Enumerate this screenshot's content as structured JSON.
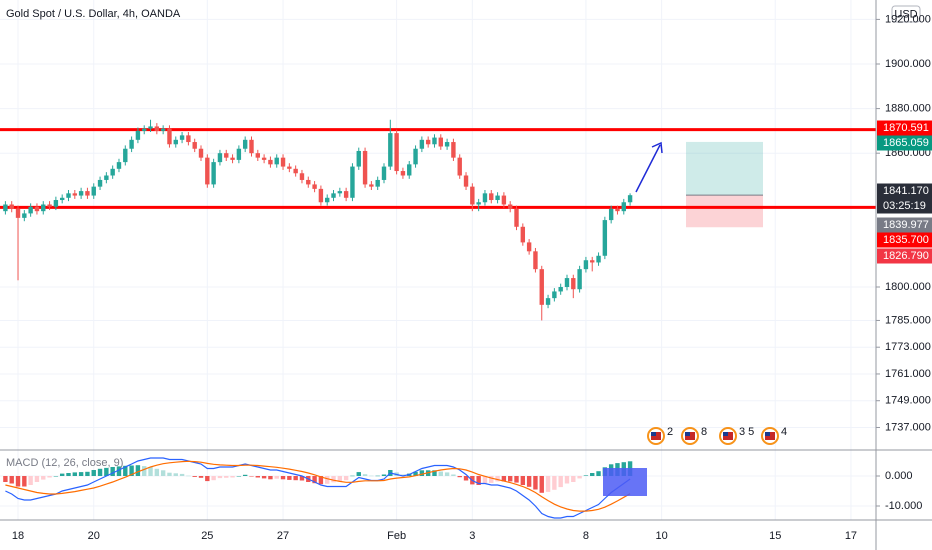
{
  "chart_data": {
    "type": "candlestick",
    "title": "Gold Spot / U.S. Dollar, 4h, OANDA",
    "currency": "USD",
    "categories": [
      null,
      null,
      "18",
      null,
      null,
      null,
      null,
      null,
      null,
      null,
      null,
      null,
      null,
      null,
      "20",
      null,
      null,
      null,
      null,
      null,
      null,
      null,
      null,
      null,
      null,
      null,
      null,
      null,
      null,
      null,
      null,
      null,
      "25",
      null,
      null,
      null,
      null,
      null,
      null,
      null,
      null,
      null,
      null,
      null,
      "27",
      null,
      null,
      null,
      null,
      null,
      null,
      null,
      null,
      null,
      null,
      null,
      null,
      null,
      null,
      null,
      null,
      null,
      "Feb",
      null,
      null,
      null,
      null,
      null,
      null,
      null,
      null,
      null,
      null,
      null,
      "3",
      null,
      null,
      null,
      null,
      null,
      null,
      null,
      null,
      null,
      null,
      null,
      null,
      null,
      null,
      null,
      null,
      null,
      "8",
      null,
      null,
      null,
      null,
      null,
      null,
      null,
      null,
      null,
      null,
      null,
      "10",
      null,
      null,
      null,
      null,
      null,
      null,
      null,
      null,
      null,
      null,
      null,
      null,
      null,
      null,
      null,
      null,
      null,
      "15",
      null,
      null,
      null,
      null,
      null,
      null,
      null,
      null,
      null,
      null,
      null,
      "17"
    ],
    "open": [
      1834,
      1837,
      1835,
      1831,
      1833,
      1836,
      1834,
      1837,
      1836,
      1839,
      1840,
      1842,
      1841,
      1843,
      1841,
      1845,
      1848,
      1850,
      1853,
      1856,
      1862,
      1866,
      1870,
      1871,
      1872,
      1870,
      1871,
      1864,
      1866,
      1868,
      1865,
      1862,
      1858,
      1846,
      1856,
      1860,
      1858,
      1857,
      1862,
      1866,
      1860,
      1858,
      1857,
      1855,
      1858,
      1854,
      1853,
      1851,
      1848,
      1846,
      1844,
      1838,
      1840,
      1842,
      1843,
      1840,
      1854,
      1861,
      1846,
      1845,
      1848,
      1854,
      1869,
      1852,
      1850,
      1855,
      1862,
      1866,
      1864,
      1867,
      1863,
      1865,
      1858,
      1850,
      1845,
      1837,
      1838,
      1842,
      1839,
      1841,
      1837,
      1835,
      1827,
      1820,
      1816,
      1808,
      1792,
      1795,
      1798,
      1800,
      1804,
      1799,
      1808,
      1812,
      1811,
      1814,
      1830,
      1835,
      1834,
      1838,
      null,
      null,
      null,
      null,
      null,
      null,
      null,
      null,
      null,
      null,
      null,
      null,
      null,
      null,
      null,
      null,
      null,
      null,
      null,
      null,
      null,
      null,
      null,
      null,
      null,
      null,
      null,
      null,
      null,
      null,
      null,
      null,
      null,
      null,
      null
    ],
    "high": [
      1838.5,
      1838.5,
      1836.5,
      1834.5,
      1837.5,
      1837.5,
      1838.5,
      1838.5,
      1840.5,
      1841.5,
      1843.5,
      1843.5,
      1844.5,
      1844.5,
      1846.5,
      1849.5,
      1851.5,
      1854.5,
      1857.5,
      1863.5,
      1867.5,
      1871.5,
      1872.5,
      1875,
      1873.5,
      1872.5,
      1872.5,
      1867.5,
      1869.5,
      1869.5,
      1866.5,
      1863.5,
      1859.5,
      1857.5,
      1861.5,
      1861.5,
      1859.5,
      1863.5,
      1867.5,
      1867.5,
      1861.5,
      1859.5,
      1858.5,
      1859.5,
      1859.5,
      1855.5,
      1854.5,
      1852.5,
      1849.5,
      1847.5,
      1845.5,
      1841.5,
      1843.5,
      1844.5,
      1844.5,
      1855.5,
      1862.5,
      1862.5,
      1847.5,
      1849.5,
      1855.5,
      1875,
      1870.5,
      1853.5,
      1856.5,
      1863.5,
      1867.5,
      1867.5,
      1868.5,
      1868.5,
      1866.5,
      1866.5,
      1859.5,
      1851.5,
      1846.5,
      1839.5,
      1843.5,
      1843.5,
      1842.5,
      1842.5,
      1838.5,
      1836.5,
      1828.5,
      1821.5,
      1817.5,
      1809.5,
      1796.5,
      1799.5,
      1801.5,
      1805.5,
      1805.5,
      1809.5,
      1813.5,
      1813.5,
      1815.5,
      1831.5,
      1836.5,
      1836.5,
      1839.5,
      1842,
      null,
      null,
      null,
      null,
      null,
      null,
      null,
      null,
      null,
      null,
      null,
      null,
      null,
      null,
      null,
      null,
      null,
      null,
      null,
      null,
      null,
      null,
      null,
      null,
      null,
      null,
      null,
      null,
      null,
      null,
      null,
      null,
      null,
      null,
      null
    ],
    "low": [
      1832.5,
      1833.5,
      1803,
      1829.5,
      1831.5,
      1832.5,
      1832.5,
      1834.5,
      1834.5,
      1837.5,
      1838.5,
      1839.5,
      1839.5,
      1839.5,
      1839.5,
      1843.5,
      1846.5,
      1848.5,
      1851.5,
      1854.5,
      1860.5,
      1864.5,
      1868.5,
      1869.5,
      1868.5,
      1868.5,
      1862.5,
      1862.5,
      1864.5,
      1863.5,
      1860.5,
      1856.5,
      1844.5,
      1844.5,
      1854.5,
      1856.5,
      1855.5,
      1855.5,
      1860.5,
      1858.5,
      1856.5,
      1855.5,
      1853.5,
      1853.5,
      1852.5,
      1851.5,
      1849.5,
      1846.5,
      1844.5,
      1842.5,
      1836.5,
      1836.5,
      1838.5,
      1840.5,
      1838.5,
      1838.5,
      1852.5,
      1844.5,
      1843.5,
      1843.5,
      1846.5,
      1852.5,
      1850.5,
      1848.5,
      1848.5,
      1853.5,
      1860.5,
      1862.5,
      1862.5,
      1861.5,
      1861.5,
      1856.5,
      1848.5,
      1843.5,
      1834,
      1834,
      1836.5,
      1837.5,
      1837.5,
      1835.5,
      1833.5,
      1825.5,
      1818.5,
      1814.5,
      1806.5,
      1785,
      1790.5,
      1793.5,
      1796.5,
      1798.5,
      1795,
      1797.5,
      1806.5,
      1807,
      1809.5,
      1812.5,
      1828.5,
      1832.5,
      1832.5,
      1836.5,
      null,
      null,
      null,
      null,
      null,
      null,
      null,
      null,
      null,
      null,
      null,
      null,
      null,
      null,
      null,
      null,
      null,
      null,
      null,
      null,
      null,
      null,
      null,
      null,
      null,
      null,
      null,
      null,
      null,
      null,
      null,
      null,
      null,
      null,
      null
    ],
    "close": [
      1837,
      1835,
      1831,
      1833,
      1836,
      1834,
      1837,
      1836,
      1839,
      1840,
      1842,
      1841,
      1843,
      1841,
      1845,
      1848,
      1850,
      1853,
      1856,
      1862,
      1866,
      1870,
      1871,
      1872,
      1870,
      1871,
      1864,
      1866,
      1868,
      1865,
      1862,
      1858,
      1846,
      1856,
      1860,
      1858,
      1857,
      1862,
      1866,
      1860,
      1858,
      1857,
      1855,
      1858,
      1854,
      1853,
      1851,
      1848,
      1846,
      1844,
      1838,
      1840,
      1842,
      1843,
      1840,
      1854,
      1861,
      1846,
      1845,
      1848,
      1854,
      1869,
      1852,
      1850,
      1855,
      1862,
      1866,
      1864,
      1867,
      1863,
      1865,
      1858,
      1850,
      1845,
      1837,
      1838,
      1842,
      1839,
      1841,
      1837,
      1835,
      1827,
      1820,
      1816,
      1808,
      1792,
      1795,
      1798,
      1800,
      1804,
      1799,
      1808,
      1812,
      1811,
      1814,
      1830,
      1835,
      1834,
      1838,
      1841.17,
      null,
      null,
      null,
      null,
      null,
      null,
      null,
      null,
      null,
      null,
      null,
      null,
      null,
      null,
      null,
      null,
      null,
      null,
      null,
      null,
      null,
      null,
      null,
      null,
      null,
      null,
      null,
      null,
      null,
      null,
      null,
      null,
      null,
      null,
      null
    ],
    "up_color": "#26a69a",
    "down_color": "#ef5350",
    "ylim": [
      1726.9,
      1928.7
    ],
    "yticks": [
      {
        "value": 1920,
        "label": "1920.000"
      },
      {
        "value": 1900,
        "label": "1900.000"
      },
      {
        "value": 1880,
        "label": "1880.000"
      },
      {
        "value": 1860,
        "label": "1860.000"
      },
      {
        "value": 1800,
        "label": "1800.000"
      },
      {
        "value": 1785,
        "label": "1785.000"
      },
      {
        "value": 1773,
        "label": "1773.000"
      },
      {
        "value": 1761,
        "label": "1761.000"
      },
      {
        "value": 1749,
        "label": "1749.000"
      },
      {
        "value": 1737,
        "label": "1737.000"
      }
    ],
    "grid": true,
    "tags": [
      {
        "value": 1870.591,
        "color": "#ff0000",
        "draw": "line"
      },
      {
        "value": 1865.059,
        "color": "#089981",
        "draw": "target"
      },
      {
        "value": 1841.17,
        "label": "1841.170",
        "color": "#2a2e39",
        "draw": "entry"
      },
      {
        "value": 1839.977,
        "color": "#787b86"
      },
      {
        "value": 1835.7,
        "label": "1835.700",
        "color": "#ff0000",
        "draw": "line"
      },
      {
        "value": 1826.79,
        "label": "1826.790",
        "color": "#f23645",
        "draw": "stop"
      }
    ],
    "countdown": "03:25:19",
    "events": [
      "2",
      "8",
      "3 5",
      "4"
    ],
    "macd": {
      "type": "macd",
      "label": "MACD (12, 26, close, 9)",
      "histogram": [
        -2,
        -2.5,
        -3.5,
        -3.5,
        -3,
        -2,
        -1.2,
        -0.5,
        0,
        0.8,
        1,
        1.2,
        1.3,
        1.4,
        2,
        2.4,
        2.7,
        3,
        3.2,
        3.4,
        3.5,
        3.6,
        3.3,
        3,
        2.4,
        1.9,
        1.1,
        0.9,
        0.7,
        0.1,
        -0.3,
        -0.6,
        -1.7,
        -1.4,
        -0.7,
        -0.6,
        -0.5,
        0,
        0.4,
        -0.1,
        -0.5,
        -0.8,
        -1.1,
        -0.9,
        -1.1,
        -1.3,
        -1.4,
        -1.5,
        -2,
        -2.4,
        -2.7,
        -2.6,
        -2.1,
        -1.7,
        -1.4,
        0.1,
        1.3,
        0.6,
        0.1,
        0.1,
        0.5,
        2,
        1.2,
        0.5,
        0.8,
        1.4,
        1.9,
        1.9,
        1.9,
        1.5,
        1.2,
        0.5,
        -0.4,
        -1.5,
        -2.8,
        -3,
        -2.4,
        -2.3,
        -1.8,
        -1.8,
        -1.8,
        -2.2,
        -3,
        -3.6,
        -4.5,
        -5.6,
        -5.3,
        -4.6,
        -3.7,
        -2.5,
        -2,
        -0.8,
        0.2,
        1,
        1.6,
        2.9,
        3.9,
        4.3,
        4.6,
        4.9,
        null,
        null,
        null,
        null,
        null,
        null,
        null,
        null,
        null,
        null,
        null,
        null,
        null,
        null,
        null,
        null,
        null,
        null,
        null,
        null,
        null,
        null,
        null,
        null,
        null,
        null,
        null,
        null,
        null,
        null,
        null,
        null,
        null,
        null,
        null
      ],
      "macd": [
        -5,
        -6,
        -7.5,
        -8,
        -8,
        -7.5,
        -7,
        -6.5,
        -6,
        -5,
        -4.5,
        -4,
        -3.5,
        -3,
        -2,
        -1,
        0,
        1,
        2,
        3,
        4,
        5,
        5.5,
        6,
        6,
        6,
        5.5,
        5.5,
        5.5,
        5,
        4.5,
        4,
        2.5,
        2.5,
        3,
        3,
        3,
        3.5,
        4,
        3.5,
        3,
        2.5,
        2,
        2,
        1.5,
        1,
        0.5,
        0,
        -1,
        -2,
        -3,
        -3.5,
        -3.5,
        -3.5,
        -3.5,
        -2,
        -0.5,
        -1,
        -1.5,
        -1.5,
        -1,
        1,
        0.5,
        0,
        0.5,
        1.5,
        2.5,
        3,
        3.5,
        3.5,
        3.5,
        3,
        2,
        0.5,
        -1.5,
        -2.5,
        -2.5,
        -3,
        -3,
        -3.5,
        -4,
        -5,
        -6.5,
        -8,
        -10,
        -12.5,
        -13.5,
        -14,
        -14,
        -13.5,
        -13.5,
        -12.5,
        -11.5,
        -10.5,
        -9.5,
        -7.5,
        -5.5,
        -4,
        -2.5,
        -1,
        null,
        null,
        null,
        null,
        null,
        null,
        null,
        null,
        null,
        null,
        null,
        null,
        null,
        null,
        null,
        null,
        null,
        null,
        null,
        null,
        null,
        null,
        null,
        null,
        null,
        null,
        null,
        null,
        null,
        null,
        null,
        null,
        null,
        null,
        null
      ],
      "signal": [
        -3,
        -3.5,
        -4,
        -4.5,
        -5,
        -5.5,
        -5.8,
        -6,
        -6,
        -5.8,
        -5.5,
        -5.2,
        -4.8,
        -4.4,
        -4,
        -3.4,
        -2.7,
        -2,
        -1.2,
        -0.4,
        0.5,
        1.4,
        2.2,
        3,
        3.6,
        4.1,
        4.4,
        4.6,
        4.8,
        4.9,
        4.8,
        4.6,
        4.2,
        3.9,
        3.7,
        3.6,
        3.5,
        3.5,
        3.6,
        3.6,
        3.5,
        3.3,
        3.1,
        2.9,
        2.6,
        2.3,
        1.9,
        1.5,
        1,
        0.4,
        -0.3,
        -0.9,
        -1.4,
        -1.8,
        -2.1,
        -2.1,
        -1.8,
        -1.6,
        -1.6,
        -1.6,
        -1.5,
        -1,
        -0.7,
        -0.5,
        -0.3,
        0.1,
        0.6,
        1.1,
        1.6,
        2,
        2.3,
        2.5,
        2.4,
        2,
        1.3,
        0.5,
        -0.1,
        -0.7,
        -1.2,
        -1.7,
        -2.2,
        -2.8,
        -3.5,
        -4.4,
        -5.5,
        -6.9,
        -8.2,
        -9.4,
        -10.3,
        -11,
        -11.5,
        -11.7,
        -11.7,
        -11.5,
        -11.1,
        -10.4,
        -9.4,
        -8.3,
        -7.1,
        -5.9,
        null,
        null,
        null,
        null,
        null,
        null,
        null,
        null,
        null,
        null,
        null,
        null,
        null,
        null,
        null,
        null,
        null,
        null,
        null,
        null,
        null,
        null,
        null,
        null,
        null,
        null,
        null,
        null,
        null,
        null,
        null,
        null,
        null,
        null,
        null
      ],
      "macd_color": "#2962ff",
      "signal_color": "#ff6d00",
      "hist_colors": {
        "up_rising": "#26a69a",
        "up_falling": "#b2dfdb",
        "down_falling": "#ef5350",
        "down_rising": "#ffcdd2"
      },
      "ylim": [
        -14.667,
        8.667
      ],
      "yticks": [
        {
          "value": 0,
          "label": "0.000"
        },
        {
          "value": -10,
          "label": "-10.000"
        }
      ]
    }
  }
}
